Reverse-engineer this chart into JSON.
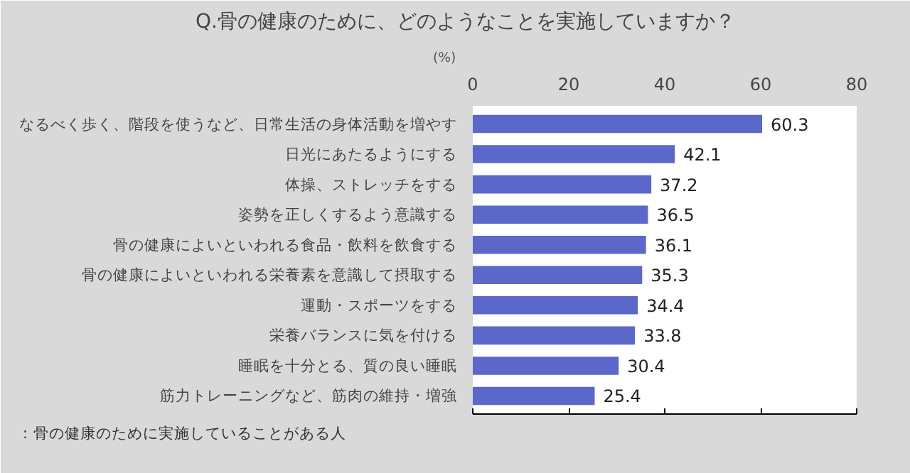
{
  "chart_data": {
    "type": "bar",
    "orientation": "horizontal",
    "title": "Q.骨の健康のために、どのようなことを実施していますか？",
    "xlabel": "(%)",
    "categories": [
      "なるべく歩く、階段を使うなど、日常生活の身体活動を増やす",
      "日光にあたるようにする",
      "体操、ストレッチをする",
      "姿勢を正しくするよう意識する",
      "骨の健康によいといわれる食品・飲料を飲食する",
      "骨の健康によいといわれる栄養素を意識して摂取する",
      "運動・スポーツをする",
      "栄養バランスに気を付ける",
      "睡眠を十分とる、質の良い睡眠",
      "筋力トレーニングなど、筋肉の維持・増強"
    ],
    "values": [
      60.3,
      42.1,
      37.2,
      36.5,
      36.1,
      35.3,
      34.4,
      33.8,
      30.4,
      25.4
    ],
    "color": "#5b67c9",
    "xlim": [
      0,
      80
    ],
    "xticks": [
      0,
      20,
      40,
      60,
      80
    ],
    "grid": false,
    "data_labels": true,
    "annotations": [
      "：骨の健康のために実施していることがある人"
    ]
  }
}
